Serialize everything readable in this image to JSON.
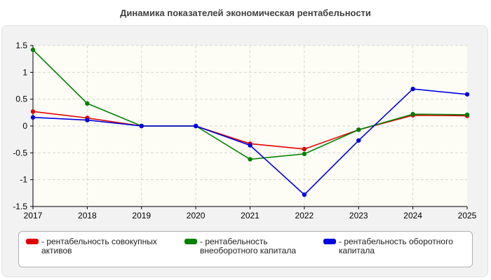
{
  "page": {
    "title": "Динамика показателей экономическая рентабельности"
  },
  "chart_data": {
    "type": "line",
    "title": "Динамика показателей экономическая рентабельности",
    "x": [
      "2017",
      "2018",
      "2019",
      "2020",
      "2021",
      "2022",
      "2023",
      "2024",
      "2025"
    ],
    "ylim": [
      -1.5,
      1.5
    ],
    "yticks": [
      1.5,
      1,
      0.5,
      0,
      -0.5,
      -1,
      -1.5
    ],
    "ytick_labels": [
      "1.5",
      "1",
      "0.5",
      "0",
      "-0.5",
      "-1",
      "-1.5"
    ],
    "grid": true,
    "legend_position": "bottom",
    "series": [
      {
        "name": "- рентабельность совокупных активов",
        "color": "#e00000",
        "values": [
          0.27,
          0.15,
          0.0,
          0.0,
          -0.33,
          -0.43,
          -0.07,
          0.2,
          0.19
        ]
      },
      {
        "name": "- рентабельность внеоборотного капитала",
        "color": "#008000",
        "values": [
          1.42,
          0.42,
          0.0,
          0.0,
          -0.62,
          -0.52,
          -0.07,
          0.22,
          0.21
        ]
      },
      {
        "name": "- рентабельность оборотного капитала",
        "color": "#0000e0",
        "values": [
          0.16,
          0.11,
          0.0,
          0.0,
          -0.36,
          -1.28,
          -0.27,
          0.69,
          0.59
        ]
      }
    ]
  }
}
